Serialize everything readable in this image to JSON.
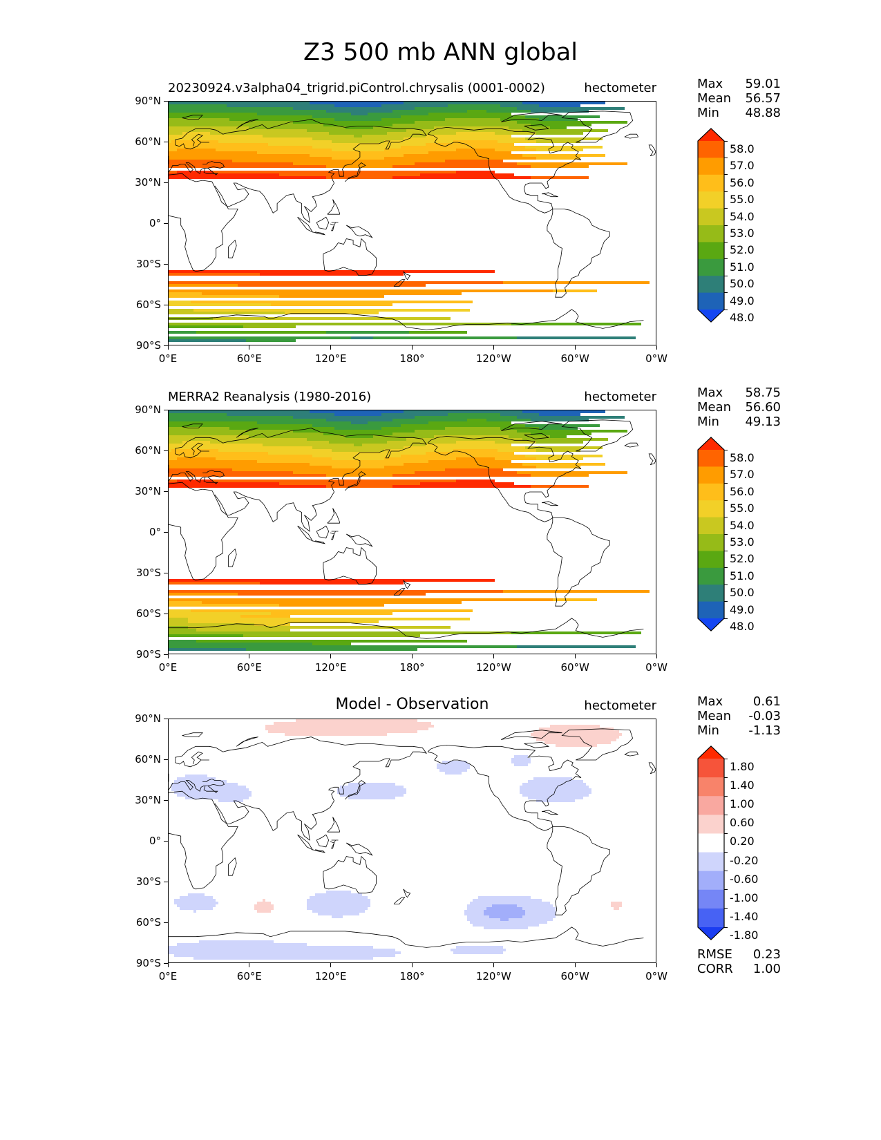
{
  "figure": {
    "title": "Z3 500 mb ANN global"
  },
  "panels": [
    {
      "id": "test",
      "title": "20230924.v3alpha04_trigrid.piControl.chrysalis (0001-0002)",
      "title_style": "left",
      "units": "hectometer",
      "stats": [
        {
          "label": "Max",
          "value": "59.01"
        },
        {
          "label": "Mean",
          "value": "56.57"
        },
        {
          "label": "Min",
          "value": "48.88"
        }
      ],
      "colorbar": {
        "labels": [
          "58.0",
          "57.0",
          "56.0",
          "55.0",
          "54.0",
          "53.0",
          "52.0",
          "51.0",
          "50.0",
          "49.0",
          "48.0"
        ],
        "colors": [
          "#ff2a00",
          "#ff6400",
          "#ff9c00",
          "#ffbe1a",
          "#f2d028",
          "#c9c820",
          "#96bb18",
          "#5aa812",
          "#3a9a3e",
          "#2e7f78",
          "#1e63b7",
          "#1446f2"
        ]
      }
    },
    {
      "id": "reference",
      "title": "MERRA2 Reanalysis (1980-2016)",
      "title_style": "left",
      "units": "hectometer",
      "stats": [
        {
          "label": "Max",
          "value": "58.75"
        },
        {
          "label": "Mean",
          "value": "56.60"
        },
        {
          "label": "Min",
          "value": "49.13"
        }
      ],
      "colorbar": {
        "labels": [
          "58.0",
          "57.0",
          "56.0",
          "55.0",
          "54.0",
          "53.0",
          "52.0",
          "51.0",
          "50.0",
          "49.0",
          "48.0"
        ],
        "colors": [
          "#ff2a00",
          "#ff6400",
          "#ff9c00",
          "#ffbe1a",
          "#f2d028",
          "#c9c820",
          "#96bb18",
          "#5aa812",
          "#3a9a3e",
          "#2e7f78",
          "#1e63b7",
          "#1446f2"
        ]
      }
    },
    {
      "id": "difference",
      "title": "Model - Observation",
      "title_style": "center",
      "units": "hectometer",
      "stats": [
        {
          "label": "Max",
          "value": "0.61"
        },
        {
          "label": "Mean",
          "value": "-0.03"
        },
        {
          "label": "Min",
          "value": "-1.13"
        }
      ],
      "extra_stats": [
        {
          "label": "RMSE",
          "value": "0.23"
        },
        {
          "label": "CORR",
          "value": "1.00"
        }
      ],
      "colorbar": {
        "labels": [
          "1.80",
          "1.40",
          "1.00",
          "0.60",
          "0.20",
          "-0.20",
          "-0.60",
          "-1.00",
          "-1.40",
          "-1.80"
        ],
        "colors": [
          "#ff2a00",
          "#f6543a",
          "#f8836a",
          "#f9a8a0",
          "#fbd2cd",
          "#ffffff",
          "#cfd5fc",
          "#a2aefa",
          "#7586f6",
          "#4762f4",
          "#1a3df1"
        ]
      }
    }
  ],
  "axes": {
    "lat_ticks": [
      "90°N",
      "60°N",
      "30°N",
      "0°",
      "30°S",
      "60°S",
      "90°S"
    ],
    "lon_ticks": [
      "0°E",
      "60°E",
      "120°E",
      "180°",
      "120°W",
      "60°W",
      "0°W"
    ]
  },
  "legend_colors": {
    "coastline": "#000000"
  }
}
